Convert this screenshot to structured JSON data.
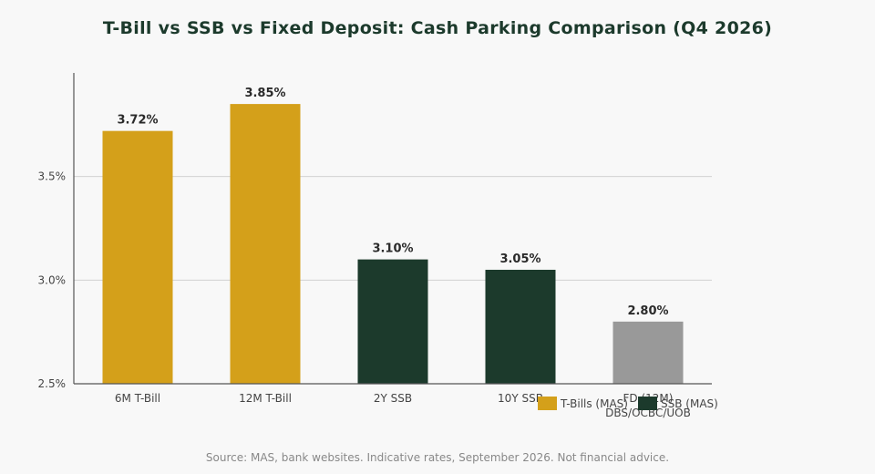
{
  "chart_data": {
    "type": "bar",
    "title": "T-Bill vs SSB vs Fixed Deposit: Cash Parking Comparison (Q4 2026)",
    "categories": [
      "6M T-Bill",
      "12M T-Bill",
      "2Y SSB",
      "10Y SSB",
      "FD (12M)\nDBS/OCBC/UOB"
    ],
    "values": [
      3.72,
      3.85,
      3.1,
      3.05,
      2.8
    ],
    "value_labels": [
      "3.72%",
      "3.85%",
      "3.10%",
      "3.05%",
      "2.80%"
    ],
    "bar_groups": [
      "tbill",
      "tbill",
      "ssb",
      "ssb",
      "fd"
    ],
    "ylim": [
      2.5,
      4.0
    ],
    "yticks": [
      2.5,
      3.0,
      3.5
    ],
    "ytick_labels": [
      "2.5%",
      "3.0%",
      "3.5%"
    ],
    "xlabel": "",
    "ylabel": "",
    "grid": true,
    "legend": {
      "placement": "bottom-right",
      "entries": [
        {
          "key": "tbill",
          "label": "T-Bills (MAS)"
        },
        {
          "key": "ssb",
          "label": "SSB (MAS)"
        }
      ]
    },
    "colors": {
      "tbill": "#d4a01a",
      "ssb": "#1c3a2c",
      "fd": "#999999"
    },
    "source": "Source: MAS, bank websites. Indicative rates, September 2026. Not financial advice."
  }
}
